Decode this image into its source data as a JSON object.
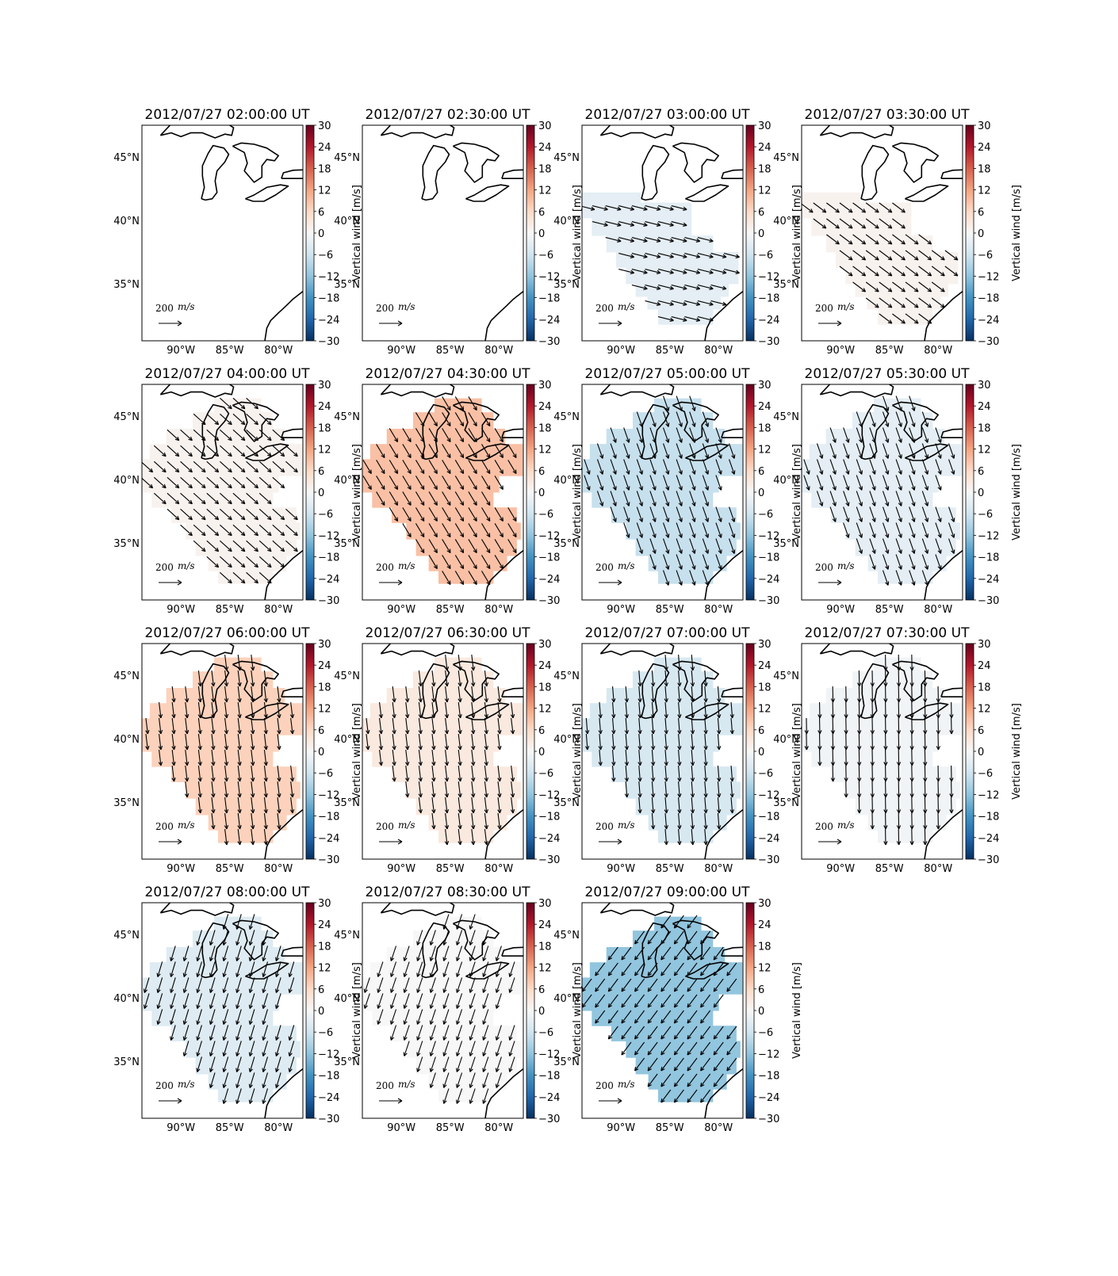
{
  "figure": {
    "colorbar_label": "Vertical wind [m/s]",
    "colorbar_ticks": [
      30,
      24,
      18,
      12,
      6,
      0,
      -6,
      -12,
      -18,
      -24,
      -30
    ],
    "colorbar_tick_labels": [
      "30",
      "24",
      "18",
      "12",
      "6",
      "0",
      "−6",
      "−12",
      "−18",
      "−24",
      "−30"
    ],
    "lat_ticks": [
      {
        "value": 45,
        "label": "45°N"
      },
      {
        "value": 40,
        "label": "40°N"
      },
      {
        "value": 35,
        "label": "35°N"
      }
    ],
    "lon_ticks": [
      {
        "value": -90,
        "label": "90°W"
      },
      {
        "value": -85,
        "label": "85°W"
      },
      {
        "value": -80,
        "label": "80°W"
      }
    ],
    "quiver_key_value": "200",
    "quiver_key_unit": "m/s",
    "colormap": "RdBu_r",
    "colors": {
      "negative_max": "#053061",
      "zero": "#f7f7f7",
      "positive_max": "#67001f"
    }
  },
  "panels": [
    {
      "title": "2012/07/27 02:00:00 UT",
      "vertical_wind": null,
      "coverage": "none",
      "arrow_dir": [
        0,
        0
      ]
    },
    {
      "title": "2012/07/27 02:30:00 UT",
      "vertical_wind": null,
      "coverage": "none",
      "arrow_dir": [
        0,
        0
      ]
    },
    {
      "title": "2012/07/27 03:00:00 UT",
      "vertical_wind": -3,
      "coverage": "small",
      "arrow_dir": [
        1,
        0.25
      ]
    },
    {
      "title": "2012/07/27 03:30:00 UT",
      "vertical_wind": 1,
      "coverage": "small",
      "arrow_dir": [
        1,
        0.75
      ]
    },
    {
      "title": "2012/07/27 04:00:00 UT",
      "vertical_wind": 1,
      "coverage": "large",
      "arrow_dir": [
        1,
        0.9
      ]
    },
    {
      "title": "2012/07/27 04:30:00 UT",
      "vertical_wind": 9,
      "coverage": "large",
      "arrow_dir": [
        0.6,
        1
      ]
    },
    {
      "title": "2012/07/27 05:00:00 UT",
      "vertical_wind": -7,
      "coverage": "large",
      "arrow_dir": [
        0.35,
        1
      ]
    },
    {
      "title": "2012/07/27 05:30:00 UT",
      "vertical_wind": -3,
      "coverage": "large",
      "arrow_dir": [
        0.35,
        1
      ]
    },
    {
      "title": "2012/07/27 06:00:00 UT",
      "vertical_wind": 7,
      "coverage": "large",
      "arrow_dir": [
        0.12,
        1
      ]
    },
    {
      "title": "2012/07/27 06:30:00 UT",
      "vertical_wind": 3,
      "coverage": "large",
      "arrow_dir": [
        0.12,
        1
      ]
    },
    {
      "title": "2012/07/27 07:00:00 UT",
      "vertical_wind": -5,
      "coverage": "large",
      "arrow_dir": [
        0.08,
        1
      ]
    },
    {
      "title": "2012/07/27 07:30:00 UT",
      "vertical_wind": -1,
      "coverage": "large",
      "arrow_dir": [
        0.02,
        1
      ]
    },
    {
      "title": "2012/07/27 08:00:00 UT",
      "vertical_wind": -4,
      "coverage": "large",
      "arrow_dir": [
        -0.3,
        1
      ]
    },
    {
      "title": "2012/07/27 08:30:00 UT",
      "vertical_wind": 0,
      "coverage": "large",
      "arrow_dir": [
        -0.3,
        0.9
      ]
    },
    {
      "title": "2012/07/27 09:00:00 UT",
      "vertical_wind": -12,
      "coverage": "large",
      "arrow_dir": [
        -0.6,
        0.8
      ]
    }
  ]
}
